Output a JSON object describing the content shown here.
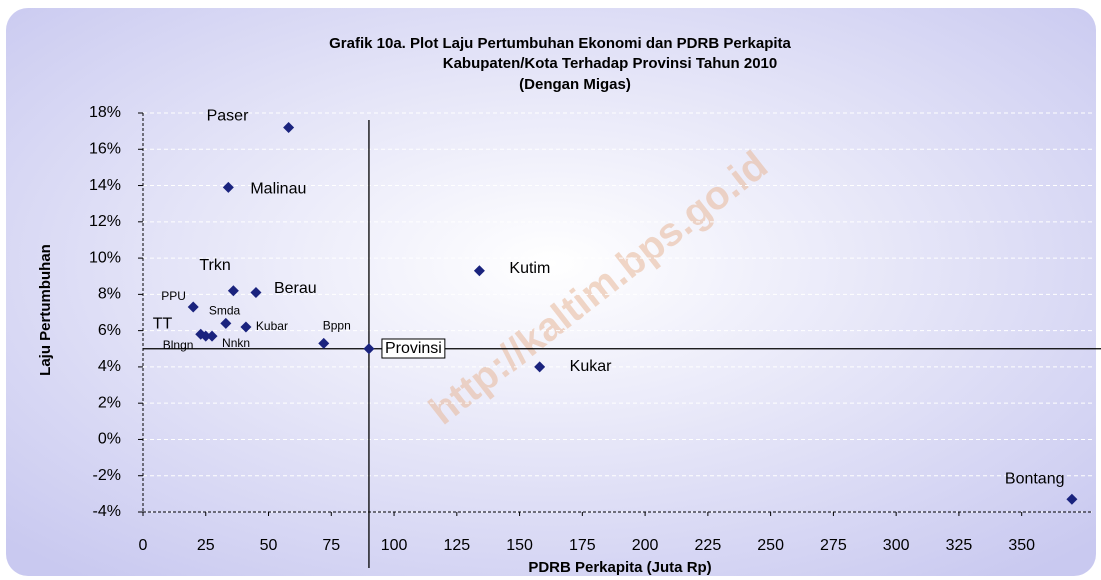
{
  "chart_data": {
    "type": "scatter",
    "title": [
      "Grafik 10a. Plot Laju Pertumbuhan Ekonomi dan PDRB Perkapita",
      "Kabupaten/Kota Terhadap Provinsi Tahun 2010",
      "(Dengan Migas)"
    ],
    "xlabel": "PDRB Perkapita (Juta Rp)",
    "ylabel": "Laju Pertumbuhan",
    "watermark": "http://kaltim.bps.go.id",
    "color": "#1a237e",
    "grid": true,
    "xlim": [
      0,
      380
    ],
    "xticks": [
      0,
      25,
      50,
      75,
      100,
      125,
      150,
      175,
      200,
      225,
      250,
      275,
      300,
      325,
      350
    ],
    "ylim": [
      -4,
      18
    ],
    "yticks": [
      {
        "value": -4,
        "label": "-4%"
      },
      {
        "value": -2,
        "label": "-2%"
      },
      {
        "value": 0,
        "label": "0%"
      },
      {
        "value": 2,
        "label": "2%"
      },
      {
        "value": 4,
        "label": "4%"
      },
      {
        "value": 6,
        "label": "6%"
      },
      {
        "value": 8,
        "label": "8%"
      },
      {
        "value": 10,
        "label": "10%"
      },
      {
        "value": 12,
        "label": "12%"
      },
      {
        "value": 14,
        "label": "14%"
      },
      {
        "value": 16,
        "label": "16%"
      },
      {
        "value": 18,
        "label": "18%"
      }
    ],
    "reference_point": 11,
    "labels": [
      "Paser",
      "Malinau",
      "Trkn",
      "Berau",
      "PPU",
      "Smda",
      "Kubar",
      "TT",
      "Blngn",
      "Nnkn",
      "Bppn",
      "Provinsi",
      "Kutim",
      "Kukar",
      "Bontang"
    ],
    "x": [
      58,
      34,
      36,
      45,
      20,
      33,
      41,
      23,
      25,
      27.5,
      72,
      90,
      134,
      158,
      370
    ],
    "y": [
      17.2,
      13.9,
      8.2,
      8.1,
      7.3,
      6.4,
      6.2,
      5.8,
      5.7,
      5.7,
      5.3,
      5.0,
      9.3,
      4.0,
      -3.3
    ]
  }
}
